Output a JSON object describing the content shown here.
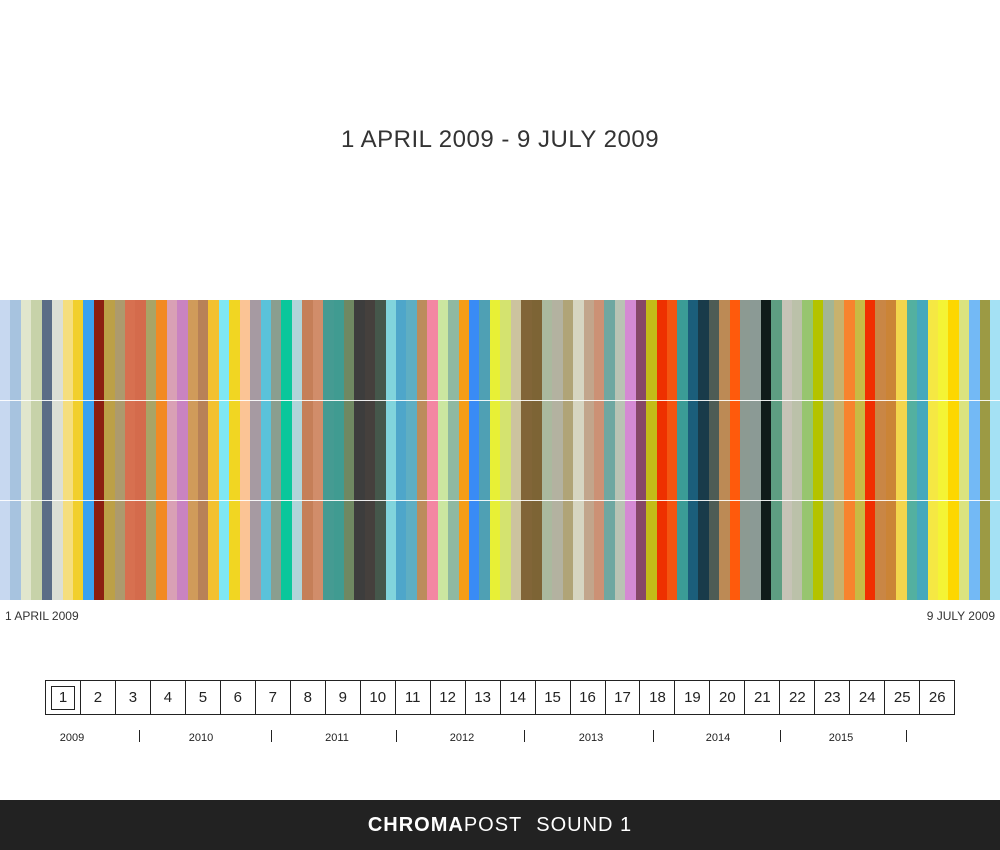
{
  "header": {
    "title": "1 APRIL 2009 - 9 JULY 2009"
  },
  "timeline": {
    "start_label": "1 APRIL 2009",
    "end_label": "9 JULY 2009",
    "colors": [
      "#c7d8f0",
      "#a7c3df",
      "#e1e6cd",
      "#c7d2a9",
      "#5b6d86",
      "#dcdfd5",
      "#f5de7e",
      "#f1cf2c",
      "#39a1f1",
      "#8c1f11",
      "#bca047",
      "#ad9a6d",
      "#d77050",
      "#d46b4c",
      "#a9a466",
      "#f28a23",
      "#d9a0b5",
      "#c983c1",
      "#d09b5a",
      "#b88157",
      "#f3c12f",
      "#7fe7f4",
      "#f1d622",
      "#fbc495",
      "#a69aa2",
      "#5ac2da",
      "#8a9e8f",
      "#0ac79b",
      "#b0d4d9",
      "#c57f58",
      "#d18d6a",
      "#459b92",
      "#409b91",
      "#6f8862",
      "#3d3d3d",
      "#45403d",
      "#45574b",
      "#81d4dc",
      "#4ea6ca",
      "#5eaec3",
      "#bc8c5c",
      "#f386a2",
      "#cbe6a0",
      "#8fb9a1",
      "#f59d16",
      "#398bf5",
      "#4fa0b4",
      "#e8f035",
      "#d4e36f",
      "#ccc39f",
      "#816538",
      "#7d6435",
      "#aab99e",
      "#b3b2a0",
      "#b0a477",
      "#d6d5c1",
      "#c2a58b",
      "#cc9175",
      "#6fa7a1",
      "#b9c3b4",
      "#d58ad3",
      "#864766",
      "#c3bb18",
      "#ee3000",
      "#f45410",
      "#3b9c96",
      "#1b5e7b",
      "#193b4a",
      "#4e5c55",
      "#bc8a55",
      "#ff5a0c",
      "#8c9a92",
      "#8b9a95",
      "#101b1a",
      "#5e9e82",
      "#c6c3b6",
      "#bbc1a9",
      "#97c56f",
      "#b4c300",
      "#a3b594",
      "#c8b26d",
      "#f7842e",
      "#c8ba45",
      "#f12e00",
      "#c98645",
      "#cb8436",
      "#f3d54c",
      "#53b0a0",
      "#45a8bc",
      "#f5e843",
      "#f4f435",
      "#fdd700",
      "#dbe37f",
      "#73b9f5",
      "#9c9a44",
      "#a4e1f4"
    ]
  },
  "pager": {
    "selected": "1",
    "pages": [
      "1",
      "2",
      "3",
      "4",
      "5",
      "6",
      "7",
      "8",
      "9",
      "10",
      "11",
      "12",
      "13",
      "14",
      "15",
      "16",
      "17",
      "18",
      "19",
      "20",
      "21",
      "22",
      "23",
      "24",
      "25",
      "26"
    ]
  },
  "years": {
    "labels": [
      "2009",
      "2010",
      "2011",
      "2012",
      "2013",
      "2014",
      "2015"
    ]
  },
  "footer": {
    "brand_bold": "CHROMA",
    "brand_light": "POST",
    "subtitle": "SOUND 1"
  }
}
